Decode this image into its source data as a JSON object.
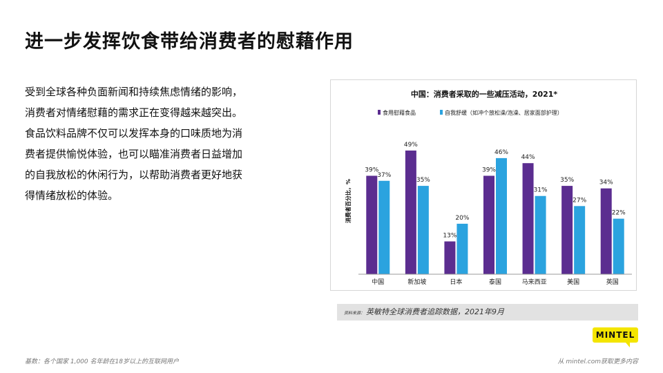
{
  "slide": {
    "title": "进一步发挥饮食带给消费者的慰藉作用",
    "body_lines": [
      "受到全球各种负面新闻和持续焦虑情绪的影响，",
      "消费者对情绪慰藉的需求正在变得越来越突出。",
      "食品饮料品牌不仅可以发挥本身的口味质地为消",
      "费者提供愉悦体验，也可以瞄准消费者日益增加",
      "的自我放松的休闲行为，以帮助消费者更好地获",
      "得情绪放松的体验。"
    ],
    "source_label": "资料来源：",
    "source_text": "英敏特全球消费者追踪数据，2021年9月",
    "footer_left": "基数：各个国家 1,000 名年龄在18岁以上的互联网用户",
    "footer_right": "从 mintel.com获取更多内容",
    "logo_text": "MINTEL",
    "colors": {
      "logo": "#f4e500"
    }
  },
  "chart_data": {
    "type": "bar",
    "title": "中国：消费者采取的一些减压活动，2021*",
    "ylabel": "消费者百分比，%",
    "categories": [
      "中国",
      "新加坡",
      "日本",
      "泰国",
      "马来西亚",
      "美国",
      "英国"
    ],
    "series": [
      {
        "name": "食用慰藉食品",
        "color": "#5b2d90",
        "values": [
          39,
          49,
          13,
          39,
          44,
          35,
          34
        ]
      },
      {
        "name": "自我舒缓（如冲个放松澡/泡澡、居家面部护理）",
        "color": "#2ba3df",
        "values": [
          37,
          35,
          20,
          46,
          31,
          27,
          22
        ]
      }
    ],
    "value_suffix": "%",
    "ylim": [
      0,
      55
    ],
    "grid": false,
    "legend_position": "top"
  }
}
